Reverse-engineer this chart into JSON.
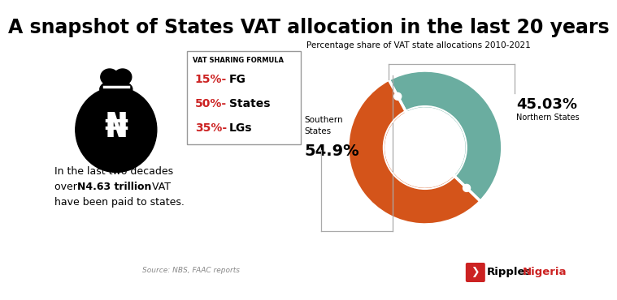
{
  "title": "A snapshot of States VAT allocation in the last 20 years",
  "title_fontsize": 17,
  "bg_color": "#ffffff",
  "vat_formula_title": "VAT SHARING FORMULA",
  "vat_items": [
    {
      "pct": "15%-",
      "label": "FG"
    },
    {
      "pct": "50%-",
      "label": "States"
    },
    {
      "pct": "35%-",
      "label": "LGs"
    }
  ],
  "pct_color": "#cc2222",
  "donut_values": [
    54.9,
    45.03
  ],
  "donut_pct_labels": [
    "54.9%",
    "45.03%"
  ],
  "donut_colors": [
    "#d4541a",
    "#6aada0"
  ],
  "donut_subtitle": "Percentage share of VAT state allocations 2010-2021",
  "source_text": "Source: NBS, FAAC reports"
}
